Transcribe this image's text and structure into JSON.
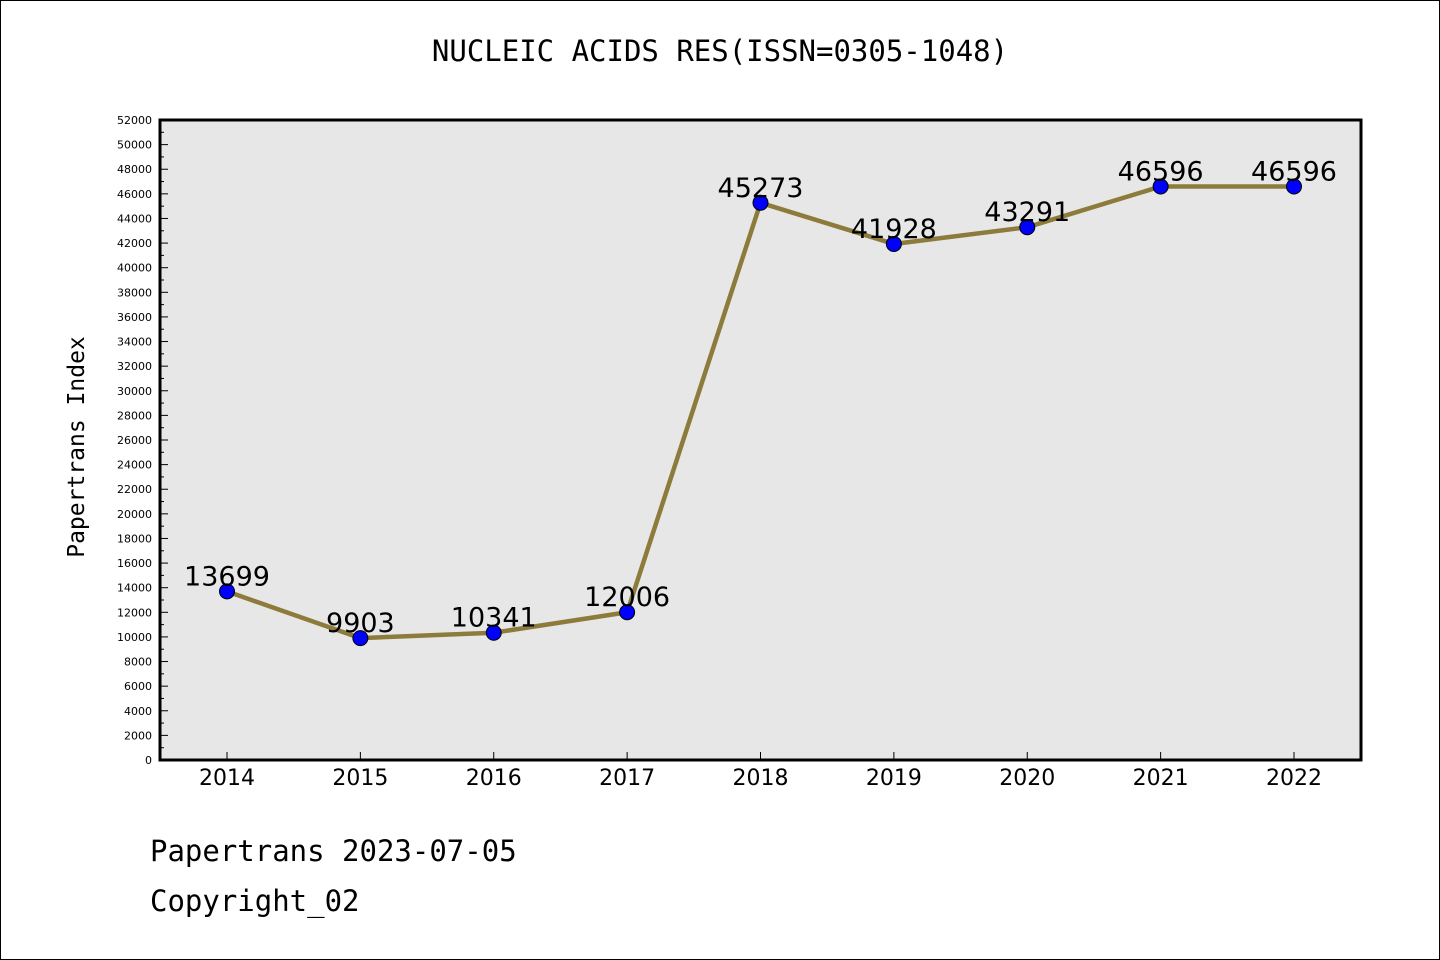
{
  "chart_data": {
    "type": "line",
    "title": "NUCLEIC ACIDS RES(ISSN=0305-1048)",
    "xlabel": "",
    "ylabel": "Papertrans Index",
    "categories": [
      "2014",
      "2015",
      "2016",
      "2017",
      "2018",
      "2019",
      "2020",
      "2021",
      "2022"
    ],
    "values": [
      13699,
      9903,
      10341,
      12006,
      45273,
      41928,
      43291,
      46596,
      46596
    ],
    "data_labels": [
      "13699",
      "9903",
      "10341",
      "12006",
      "45273",
      "41928",
      "43291",
      "46596",
      "46596"
    ],
    "ylim": [
      0,
      52000
    ],
    "y_ticks": [
      "0",
      "2000",
      "4000",
      "6000",
      "8000",
      "10000",
      "12000",
      "14000",
      "16000",
      "18000",
      "20000",
      "22000",
      "24000",
      "26000",
      "28000",
      "30000",
      "32000",
      "34000",
      "36000",
      "38000",
      "40000",
      "42000",
      "44000",
      "46000",
      "48000",
      "50000",
      "52000"
    ],
    "grid": false,
    "legend": "none",
    "colors": {
      "line": "#8c7b3a",
      "marker": "#0000ff",
      "plot_background": "#e7e7e7"
    }
  },
  "footer": {
    "date_text": "Papertrans 2023-07-05",
    "copyright_text": "Copyright_02"
  }
}
